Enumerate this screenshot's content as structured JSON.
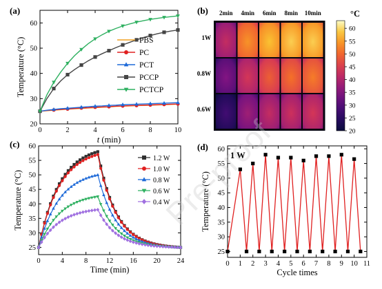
{
  "panels": {
    "a": "(a)",
    "b": "(b)",
    "c": "(c)",
    "d": "(d)"
  },
  "watermark": "Pre-proof",
  "chart_data": [
    {
      "panel": "(a)",
      "type": "line",
      "xlabel": "t (min)",
      "ylabel": "Temperature (°C)",
      "xlim": [
        0,
        10
      ],
      "ylim": [
        20,
        65
      ],
      "xticks": [
        0,
        2,
        4,
        6,
        8,
        10
      ],
      "yticks": [
        20,
        30,
        40,
        50,
        60
      ],
      "legend_position": "right",
      "x": [
        0,
        0.5,
        1,
        1.5,
        2,
        2.5,
        3,
        3.5,
        4,
        4.5,
        5,
        5.5,
        6,
        6.5,
        7,
        7.5,
        8,
        8.5,
        9,
        9.5,
        10
      ],
      "series": [
        {
          "name": "PBS",
          "color": "#f0a020",
          "marker": "none",
          "values": [
            25,
            25.2,
            25.4,
            25.6,
            25.8,
            26,
            26.1,
            26.3,
            26.4,
            26.6,
            26.7,
            26.9,
            27,
            27.1,
            27.2,
            27.3,
            27.4,
            27.5,
            27.6,
            27.7,
            27.8
          ]
        },
        {
          "name": "PC",
          "color": "#e02020",
          "marker": "circle",
          "values": [
            25,
            25.3,
            25.5,
            25.7,
            25.9,
            26.1,
            26.3,
            26.4,
            26.6,
            26.7,
            26.8,
            27,
            27.1,
            27.2,
            27.3,
            27.4,
            27.5,
            27.6,
            27.7,
            27.8,
            27.9
          ]
        },
        {
          "name": "PCT",
          "color": "#1e6ad8",
          "marker": "triangle",
          "values": [
            25,
            25.4,
            25.7,
            26,
            26.2,
            26.4,
            26.6,
            26.8,
            27,
            27.1,
            27.3,
            27.4,
            27.6,
            27.7,
            27.8,
            27.9,
            28,
            28.1,
            28.2,
            28.3,
            28.4
          ]
        },
        {
          "name": "PCCP",
          "color": "#454545",
          "marker": "square",
          "values": [
            25,
            30,
            34,
            37,
            39.5,
            41.5,
            43.3,
            45,
            46.5,
            47.8,
            49,
            50.2,
            51.3,
            52.3,
            53.3,
            54.2,
            55,
            55.7,
            56.3,
            56.8,
            57.2
          ]
        },
        {
          "name": "PCTCP",
          "color": "#2eb060",
          "marker": "triangle-down",
          "values": [
            25,
            31.5,
            36.5,
            40.5,
            44,
            47,
            49.5,
            51.8,
            53.7,
            55.3,
            56.7,
            57.8,
            58.8,
            59.6,
            60.3,
            60.9,
            61.4,
            61.8,
            62.2,
            62.5,
            62.8
          ]
        }
      ]
    },
    {
      "panel": "(b)",
      "type": "heatmap",
      "columns": [
        "2min",
        "4min",
        "6min",
        "8min",
        "10min"
      ],
      "rows": [
        "1W",
        "0.8W",
        "0.6W"
      ],
      "colorbar_title": "°C",
      "colorbar_ticks": [
        20,
        25,
        30,
        35,
        40,
        45,
        50,
        55,
        60
      ],
      "range": [
        20,
        63
      ],
      "values": [
        [
          40,
          52,
          56,
          57,
          57
        ],
        [
          33,
          42,
          47,
          49,
          50
        ],
        [
          26,
          36,
          40,
          41,
          42
        ]
      ]
    },
    {
      "panel": "(c)",
      "type": "line",
      "xlabel": "Time (min)",
      "ylabel": "Temperature (°C)",
      "xlim": [
        0,
        24
      ],
      "ylim": [
        22.5,
        60
      ],
      "xticks": [
        0,
        4,
        8,
        12,
        16,
        20,
        24
      ],
      "yticks": [
        25,
        30,
        35,
        40,
        45,
        50,
        55,
        60
      ],
      "legend_position": "top-right",
      "series": [
        {
          "name": "1.2 W",
          "color": "#303030",
          "marker": "square",
          "peak": 58
        },
        {
          "name": "1.0 W",
          "color": "#e02020",
          "marker": "circle",
          "peak": 57
        },
        {
          "name": "0.8 W",
          "color": "#1e6ad8",
          "marker": "triangle",
          "peak": 50
        },
        {
          "name": "0.6 W",
          "color": "#2eb060",
          "marker": "triangle-down",
          "peak": 42.5
        },
        {
          "name": "0.4 W",
          "color": "#a070e0",
          "marker": "diamond",
          "peak": 38
        }
      ],
      "start": 25,
      "end": 25,
      "peak_time": 10,
      "end_time": 24
    },
    {
      "panel": "(d)",
      "type": "line",
      "annotation": "1 W",
      "xlabel": "Cycle times",
      "ylabel": "Temperature (°C)",
      "xlim": [
        0,
        11
      ],
      "ylim": [
        23,
        61
      ],
      "xticks": [
        0,
        1,
        2,
        3,
        4,
        5,
        6,
        7,
        8,
        9,
        10,
        11
      ],
      "yticks": [
        25,
        30,
        35,
        40,
        45,
        50,
        55,
        60
      ],
      "line_color": "#e02020",
      "x": [
        0,
        1,
        1.5,
        2,
        2.5,
        3,
        3.5,
        4,
        4.5,
        5,
        5.5,
        6,
        6.5,
        7,
        7.5,
        8,
        8.5,
        9,
        9.5,
        10,
        10.5
      ],
      "values": [
        25,
        53,
        25,
        55,
        25,
        58,
        25,
        57,
        25,
        57,
        25,
        56,
        25,
        57.5,
        25,
        57.5,
        25,
        58,
        25,
        56.5,
        25
      ]
    }
  ]
}
